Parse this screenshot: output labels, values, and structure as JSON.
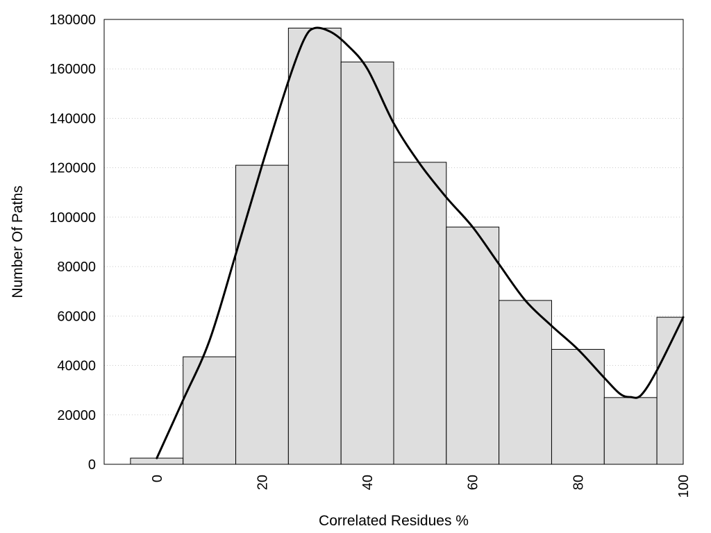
{
  "chart_data": {
    "type": "bar",
    "subtype": "histogram-with-density-curve",
    "xlabel": "Correlated Residues %",
    "ylabel": "Number Of Paths",
    "xlim": [
      -10,
      100
    ],
    "ylim": [
      0,
      180000
    ],
    "bin_width": 10,
    "x_ticks": [
      0,
      20,
      40,
      60,
      80,
      100
    ],
    "y_ticks": [
      0,
      20000,
      40000,
      60000,
      80000,
      100000,
      120000,
      140000,
      160000,
      180000
    ],
    "grid": "horizontal dotted",
    "bars": [
      {
        "x": 0,
        "value": 2500
      },
      {
        "x": 10,
        "value": 43500
      },
      {
        "x": 20,
        "value": 121000
      },
      {
        "x": 30,
        "value": 176500
      },
      {
        "x": 40,
        "value": 162800
      },
      {
        "x": 50,
        "value": 122200
      },
      {
        "x": 60,
        "value": 96000
      },
      {
        "x": 70,
        "value": 66300
      },
      {
        "x": 80,
        "value": 46500
      },
      {
        "x": 90,
        "value": 27000
      },
      {
        "x": 100,
        "value": 59500
      }
    ],
    "curve": {
      "x": [
        0,
        5,
        10,
        15,
        20,
        25,
        28,
        30,
        33,
        36,
        40,
        45,
        50,
        55,
        60,
        65,
        70,
        75,
        80,
        85,
        88,
        90,
        92,
        95,
        100
      ],
      "y": [
        2500,
        26000,
        50000,
        85000,
        121000,
        155000,
        172000,
        176500,
        175000,
        170000,
        160000,
        138000,
        121500,
        108000,
        96000,
        81000,
        66300,
        56000,
        46500,
        35000,
        28500,
        27200,
        28000,
        38000,
        59500
      ]
    }
  }
}
